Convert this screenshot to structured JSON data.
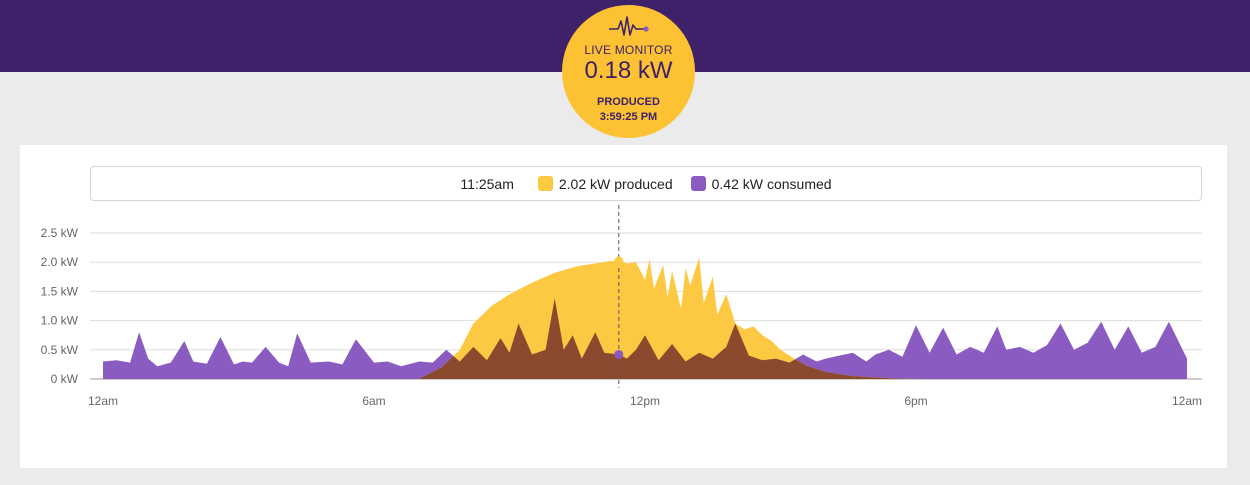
{
  "header": {
    "title": "LIVE MONITOR",
    "current_value": "0.18 kW",
    "status": "PRODUCED",
    "time": "3:59:25 PM"
  },
  "tooltip": {
    "time": "11:25am",
    "produced_value": "2.02 kW",
    "produced_label": "produced",
    "consumed_value": "0.42 kW",
    "consumed_label": "consumed"
  },
  "colors": {
    "header_bg": "#3e2168",
    "produced": "#fdc943",
    "consumed": "#8a5cc2",
    "overlap": "#8b4a2e",
    "pulse_dot": "#8a5cc2"
  },
  "chart_data": {
    "type": "area",
    "xlabel": "",
    "ylabel": "",
    "x_ticks": [
      "12am",
      "6am",
      "12pm",
      "6pm",
      "12am"
    ],
    "y_ticks": [
      "0 kW",
      "0.5 kW",
      "1.0 kW",
      "1.5 kW",
      "2.0 kW",
      "2.5 kW"
    ],
    "ylim": [
      0,
      2.5
    ],
    "xlim_hours": [
      0,
      24
    ],
    "grid": true,
    "cursor_hour": 11.42,
    "series": [
      {
        "name": "produced",
        "x_hours": [
          7.0,
          7.5,
          7.9,
          8.2,
          8.6,
          9.0,
          9.5,
          10.0,
          10.5,
          10.9,
          11.1,
          11.2,
          11.42,
          11.6,
          11.8,
          12.0,
          12.1,
          12.2,
          12.4,
          12.5,
          12.6,
          12.8,
          12.9,
          13.0,
          13.2,
          13.3,
          13.5,
          13.6,
          13.8,
          14.0,
          14.2,
          14.4,
          14.6,
          14.8,
          15.0,
          15.3,
          15.6,
          16.0,
          16.3,
          16.6,
          17.0,
          17.5,
          18.0
        ],
        "values": [
          0.0,
          0.2,
          0.5,
          0.95,
          1.25,
          1.45,
          1.65,
          1.82,
          1.93,
          1.98,
          2.0,
          2.02,
          2.02,
          1.98,
          2.0,
          1.7,
          2.05,
          1.55,
          1.95,
          1.4,
          1.85,
          1.2,
          1.9,
          1.6,
          2.08,
          1.3,
          1.75,
          1.1,
          1.45,
          0.95,
          0.85,
          0.9,
          0.75,
          0.65,
          0.5,
          0.35,
          0.22,
          0.12,
          0.08,
          0.05,
          0.03,
          0.01,
          0.0
        ]
      },
      {
        "name": "consumed",
        "x_hours": [
          0.0,
          0.3,
          0.6,
          0.8,
          1.0,
          1.2,
          1.5,
          1.8,
          2.0,
          2.3,
          2.6,
          2.9,
          3.1,
          3.3,
          3.6,
          3.9,
          4.1,
          4.3,
          4.6,
          5.0,
          5.3,
          5.6,
          6.0,
          6.3,
          6.6,
          7.0,
          7.3,
          7.6,
          7.9,
          8.2,
          8.5,
          8.8,
          9.0,
          9.2,
          9.5,
          9.8,
          10.0,
          10.2,
          10.4,
          10.6,
          10.9,
          11.1,
          11.42,
          11.6,
          11.8,
          12.0,
          12.3,
          12.6,
          12.9,
          13.2,
          13.5,
          13.8,
          14.0,
          14.3,
          14.6,
          14.9,
          15.2,
          15.5,
          15.8,
          16.0,
          16.3,
          16.6,
          16.9,
          17.1,
          17.4,
          17.7,
          18.0,
          18.3,
          18.6,
          18.9,
          19.2,
          19.5,
          19.8,
          20.0,
          20.3,
          20.6,
          20.9,
          21.2,
          21.5,
          21.8,
          22.1,
          22.4,
          22.7,
          23.0,
          23.3,
          23.6,
          24.0
        ],
        "values": [
          0.3,
          0.32,
          0.28,
          0.8,
          0.35,
          0.22,
          0.28,
          0.65,
          0.3,
          0.26,
          0.72,
          0.25,
          0.3,
          0.28,
          0.55,
          0.28,
          0.22,
          0.78,
          0.28,
          0.3,
          0.25,
          0.68,
          0.28,
          0.3,
          0.22,
          0.3,
          0.28,
          0.5,
          0.3,
          0.55,
          0.32,
          0.7,
          0.45,
          0.95,
          0.42,
          0.5,
          1.38,
          0.5,
          0.75,
          0.35,
          0.8,
          0.45,
          0.42,
          0.35,
          0.5,
          0.75,
          0.32,
          0.6,
          0.3,
          0.45,
          0.35,
          0.55,
          0.95,
          0.4,
          0.32,
          0.35,
          0.28,
          0.42,
          0.3,
          0.35,
          0.4,
          0.45,
          0.3,
          0.42,
          0.5,
          0.38,
          0.92,
          0.45,
          0.88,
          0.42,
          0.55,
          0.45,
          0.9,
          0.5,
          0.55,
          0.45,
          0.58,
          0.95,
          0.5,
          0.62,
          0.98,
          0.5,
          0.9,
          0.45,
          0.55,
          0.98,
          0.35
        ]
      }
    ]
  }
}
